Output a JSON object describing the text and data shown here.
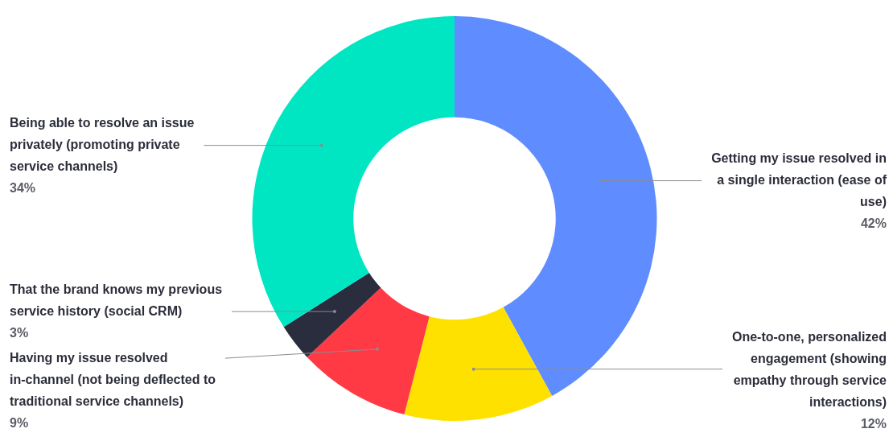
{
  "chart_data": {
    "type": "donut",
    "categories": [
      "Getting my issue resolved in a single interaction (ease of use)",
      "One-to-one, personalized engagement (showing empathy through service interactions)",
      "Having my issue resolved in-channel (not being deflected to traditional service channels)",
      "That the brand knows my previous service history (social CRM)",
      "Being able to resolve an issue privately (promoting private service channels)"
    ],
    "values": [
      42,
      12,
      9,
      3,
      34
    ],
    "value_labels": [
      "42%",
      "12%",
      "9%",
      "3%",
      "34%"
    ],
    "colors": [
      "#5f8dff",
      "#ffe100",
      "#ff3a45",
      "#2a2d3d",
      "#00e6c3"
    ],
    "legend": false
  }
}
